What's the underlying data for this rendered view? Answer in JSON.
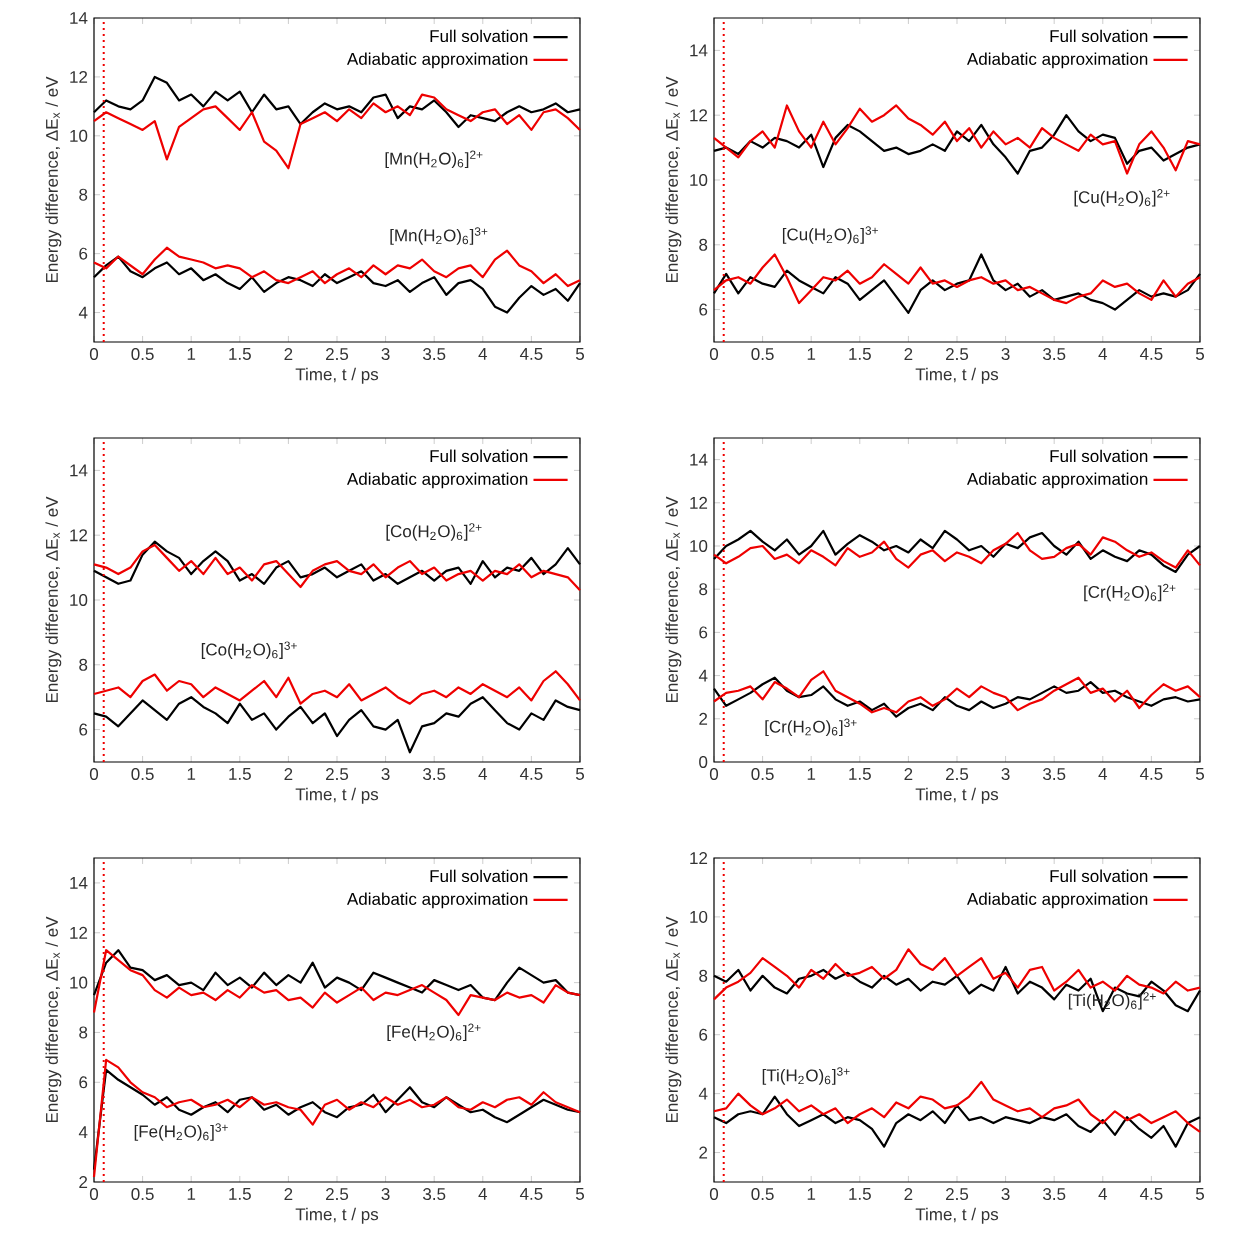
{
  "chart_data": [
    {
      "type": "line",
      "xlabel": "Time, t / ps",
      "ylabel": "Energy difference, ΔE$_{x}$ / eV",
      "legend": "top right",
      "x": [
        0,
        0.125,
        0.25,
        0.375,
        0.5,
        0.625,
        0.75,
        0.875,
        1,
        1.125,
        1.25,
        1.375,
        1.5,
        1.625,
        1.75,
        1.875,
        2,
        2.125,
        2.25,
        2.375,
        2.5,
        2.625,
        2.75,
        2.875,
        3,
        3.125,
        3.25,
        3.375,
        3.5,
        3.625,
        3.75,
        3.875,
        4,
        4.125,
        4.25,
        4.375,
        4.5,
        4.625,
        4.75,
        4.875,
        5
      ],
      "xlim": [
        0,
        5
      ],
      "xticks": [
        0,
        0.5,
        1,
        1.5,
        2,
        2.5,
        3,
        3.5,
        4,
        4.5,
        5
      ],
      "ylim": [
        3,
        14
      ],
      "yticks": [
        4,
        6,
        8,
        10,
        12,
        14
      ],
      "ref_lines": [
        {
          "axis": "x",
          "value": 0.1,
          "color": "#ee0000",
          "line_style": "dotted"
        }
      ],
      "annotations": [
        "[Mn(H$_{2}$O)$_{6}$]$^{2+}$",
        "[Mn(H$_{2}$O)$_{6}$]$^{3+}$"
      ],
      "series": [
        {
          "name": "Full solvation",
          "color": "#000000",
          "values": [
            10.8,
            11.2,
            11.0,
            10.9,
            11.2,
            12.0,
            11.8,
            11.2,
            11.4,
            11.0,
            11.5,
            11.2,
            11.5,
            10.8,
            11.4,
            10.9,
            11.0,
            10.4,
            10.8,
            11.1,
            10.9,
            11.0,
            10.8,
            11.3,
            11.4,
            10.6,
            11.0,
            10.9,
            11.2,
            10.8,
            10.3,
            10.7,
            10.6,
            10.5,
            10.8,
            11.0,
            10.8,
            10.9,
            11.1,
            10.8,
            10.9
          ]
        },
        {
          "name": "Adiabatic approximation",
          "color": "#ee0000",
          "values": [
            10.5,
            10.8,
            10.6,
            10.4,
            10.2,
            10.5,
            9.2,
            10.3,
            10.6,
            10.9,
            11.0,
            10.6,
            10.2,
            10.8,
            9.8,
            9.5,
            8.9,
            10.4,
            10.6,
            10.8,
            10.5,
            10.9,
            10.6,
            11.1,
            10.8,
            11.0,
            10.7,
            11.4,
            11.3,
            10.9,
            10.7,
            10.5,
            10.8,
            10.9,
            10.4,
            10.7,
            10.2,
            10.8,
            10.9,
            10.6,
            10.2
          ]
        },
        {
          "color": "#000000",
          "values": [
            5.2,
            5.6,
            5.9,
            5.4,
            5.2,
            5.5,
            5.7,
            5.3,
            5.5,
            5.1,
            5.3,
            5.0,
            4.8,
            5.2,
            4.7,
            5.0,
            5.2,
            5.1,
            4.9,
            5.3,
            5.0,
            5.2,
            5.4,
            5.0,
            4.9,
            5.1,
            4.7,
            5.0,
            5.2,
            4.6,
            5.0,
            5.1,
            4.8,
            4.2,
            4.0,
            4.5,
            4.9,
            4.6,
            4.8,
            4.4,
            5.0
          ]
        },
        {
          "color": "#ee0000",
          "values": [
            5.7,
            5.5,
            5.9,
            5.6,
            5.3,
            5.8,
            6.2,
            5.9,
            5.8,
            5.7,
            5.5,
            5.6,
            5.5,
            5.2,
            5.4,
            5.1,
            5.0,
            5.2,
            5.4,
            5.0,
            5.3,
            5.5,
            5.2,
            5.6,
            5.3,
            5.6,
            5.5,
            5.8,
            5.4,
            5.2,
            5.5,
            5.6,
            5.2,
            5.8,
            6.1,
            5.6,
            5.4,
            5.0,
            5.3,
            4.9,
            5.1
          ]
        }
      ]
    },
    {
      "type": "line",
      "xlabel": "Time, t / ps",
      "ylabel": "Energy difference, ΔE$_{x}$ / eV",
      "legend": "top right",
      "x": [
        0,
        0.125,
        0.25,
        0.375,
        0.5,
        0.625,
        0.75,
        0.875,
        1,
        1.125,
        1.25,
        1.375,
        1.5,
        1.625,
        1.75,
        1.875,
        2,
        2.125,
        2.25,
        2.375,
        2.5,
        2.625,
        2.75,
        2.875,
        3,
        3.125,
        3.25,
        3.375,
        3.5,
        3.625,
        3.75,
        3.875,
        4,
        4.125,
        4.25,
        4.375,
        4.5,
        4.625,
        4.75,
        4.875,
        5
      ],
      "xlim": [
        0,
        5
      ],
      "xticks": [
        0,
        0.5,
        1,
        1.5,
        2,
        2.5,
        3,
        3.5,
        4,
        4.5,
        5
      ],
      "ylim": [
        5,
        15
      ],
      "yticks": [
        6,
        8,
        10,
        12,
        14
      ],
      "ref_lines": [
        {
          "axis": "x",
          "value": 0.1,
          "color": "#ee0000",
          "line_style": "dotted"
        }
      ],
      "annotations": [
        "[Cu(H$_{2}$O)$_{6}$]$^{2+}$",
        "[Cu(H$_{2}$O)$_{6}$]$^{3+}$"
      ],
      "series": [
        {
          "name": "Full solvation",
          "color": "#000000",
          "values": [
            10.9,
            11.0,
            10.8,
            11.2,
            11.0,
            11.3,
            11.2,
            11.0,
            11.4,
            10.4,
            11.3,
            11.7,
            11.5,
            11.2,
            10.9,
            11.0,
            10.8,
            10.9,
            11.1,
            10.9,
            11.5,
            11.2,
            11.7,
            11.1,
            10.7,
            10.2,
            10.9,
            11.0,
            11.4,
            12.0,
            11.5,
            11.2,
            11.4,
            11.3,
            10.5,
            10.9,
            11.0,
            10.6,
            10.8,
            11.0,
            11.1
          ]
        },
        {
          "name": "Adiabatic approximation",
          "color": "#ee0000",
          "values": [
            11.3,
            11.0,
            10.7,
            11.2,
            11.5,
            11.0,
            12.3,
            11.5,
            11.0,
            11.8,
            11.1,
            11.6,
            12.2,
            11.8,
            12.0,
            12.3,
            11.9,
            11.7,
            11.4,
            11.8,
            11.2,
            11.6,
            11.0,
            11.5,
            11.1,
            11.3,
            11.0,
            11.6,
            11.3,
            11.1,
            10.9,
            11.4,
            11.1,
            11.2,
            10.2,
            11.1,
            11.5,
            11.0,
            10.3,
            11.2,
            11.1
          ]
        },
        {
          "color": "#000000",
          "values": [
            6.5,
            7.1,
            6.5,
            7.0,
            6.8,
            6.7,
            7.2,
            6.9,
            6.7,
            6.5,
            7.0,
            6.8,
            6.3,
            6.6,
            6.9,
            6.4,
            5.9,
            6.6,
            6.9,
            6.6,
            6.8,
            6.9,
            7.7,
            6.9,
            6.6,
            6.8,
            6.4,
            6.6,
            6.3,
            6.4,
            6.5,
            6.3,
            6.2,
            6.0,
            6.3,
            6.6,
            6.4,
            6.5,
            6.4,
            6.6,
            7.1
          ]
        },
        {
          "color": "#ee0000",
          "values": [
            6.6,
            6.9,
            7.0,
            6.8,
            7.3,
            7.7,
            7.0,
            6.2,
            6.6,
            7.0,
            6.9,
            7.2,
            6.8,
            7.0,
            7.4,
            7.1,
            6.8,
            7.3,
            6.8,
            6.9,
            6.7,
            6.9,
            7.0,
            6.8,
            6.9,
            6.6,
            6.7,
            6.5,
            6.3,
            6.2,
            6.4,
            6.5,
            6.9,
            6.7,
            6.8,
            6.5,
            6.3,
            6.9,
            6.4,
            6.8,
            7.0
          ]
        }
      ]
    },
    {
      "type": "line",
      "xlabel": "Time, t / ps",
      "ylabel": "Energy difference, ΔE$_{x}$ / eV",
      "legend": "top right",
      "x": [
        0,
        0.125,
        0.25,
        0.375,
        0.5,
        0.625,
        0.75,
        0.875,
        1,
        1.125,
        1.25,
        1.375,
        1.5,
        1.625,
        1.75,
        1.875,
        2,
        2.125,
        2.25,
        2.375,
        2.5,
        2.625,
        2.75,
        2.875,
        3,
        3.125,
        3.25,
        3.375,
        3.5,
        3.625,
        3.75,
        3.875,
        4,
        4.125,
        4.25,
        4.375,
        4.5,
        4.625,
        4.75,
        4.875,
        5
      ],
      "xlim": [
        0,
        5
      ],
      "xticks": [
        0,
        0.5,
        1,
        1.5,
        2,
        2.5,
        3,
        3.5,
        4,
        4.5,
        5
      ],
      "ylim": [
        5,
        15
      ],
      "yticks": [
        6,
        8,
        10,
        12,
        14
      ],
      "ref_lines": [
        {
          "axis": "x",
          "value": 0.1,
          "color": "#ee0000",
          "line_style": "dotted"
        }
      ],
      "annotations": [
        "[Co(H$_{2}$O)$_{6}$]$^{2+}$",
        "[Co(H$_{2}$O)$_{6}$]$^{3+}$"
      ],
      "series": [
        {
          "name": "Full solvation",
          "color": "#000000",
          "values": [
            10.9,
            10.7,
            10.5,
            10.6,
            11.4,
            11.8,
            11.5,
            11.3,
            10.8,
            11.2,
            11.5,
            11.2,
            10.6,
            10.8,
            10.5,
            11.0,
            11.2,
            10.7,
            10.8,
            11.0,
            10.7,
            10.9,
            11.1,
            10.6,
            10.8,
            10.5,
            10.7,
            10.9,
            10.6,
            10.9,
            11.0,
            10.5,
            11.2,
            10.7,
            11.0,
            10.9,
            11.3,
            10.8,
            11.1,
            11.6,
            11.1
          ]
        },
        {
          "name": "Adiabatic approximation",
          "color": "#ee0000",
          "values": [
            11.1,
            11.0,
            10.8,
            11.0,
            11.5,
            11.7,
            11.3,
            10.9,
            11.2,
            10.8,
            11.3,
            10.8,
            11.0,
            10.6,
            11.1,
            11.2,
            10.8,
            10.4,
            10.9,
            11.1,
            11.2,
            10.9,
            10.8,
            11.1,
            10.7,
            11.0,
            11.2,
            10.8,
            11.0,
            10.6,
            10.8,
            10.9,
            10.6,
            10.9,
            10.8,
            11.1,
            10.7,
            10.9,
            10.8,
            10.7,
            10.3
          ]
        },
        {
          "color": "#000000",
          "values": [
            6.5,
            6.4,
            6.1,
            6.5,
            6.9,
            6.6,
            6.3,
            6.8,
            7.0,
            6.7,
            6.5,
            6.2,
            6.8,
            6.3,
            6.5,
            6.0,
            6.4,
            6.7,
            6.2,
            6.5,
            5.8,
            6.3,
            6.6,
            6.1,
            6.0,
            6.3,
            5.3,
            6.1,
            6.2,
            6.5,
            6.4,
            6.8,
            7.0,
            6.6,
            6.2,
            6.0,
            6.5,
            6.3,
            6.9,
            6.7,
            6.6
          ]
        },
        {
          "color": "#ee0000",
          "values": [
            7.1,
            7.2,
            7.3,
            7.0,
            7.5,
            7.7,
            7.2,
            7.5,
            7.4,
            7.0,
            7.3,
            7.1,
            6.9,
            7.2,
            7.5,
            7.0,
            7.6,
            6.8,
            7.1,
            7.2,
            7.0,
            7.4,
            6.9,
            7.1,
            7.3,
            7.0,
            6.8,
            7.1,
            7.2,
            7.0,
            7.3,
            7.1,
            7.4,
            7.2,
            7.0,
            7.3,
            6.9,
            7.5,
            7.8,
            7.4,
            6.9
          ]
        }
      ]
    },
    {
      "type": "line",
      "xlabel": "Time, t / ps",
      "ylabel": "Energy difference, ΔE$_{x}$ / eV",
      "legend": "top right",
      "x": [
        0,
        0.125,
        0.25,
        0.375,
        0.5,
        0.625,
        0.75,
        0.875,
        1,
        1.125,
        1.25,
        1.375,
        1.5,
        1.625,
        1.75,
        1.875,
        2,
        2.125,
        2.25,
        2.375,
        2.5,
        2.625,
        2.75,
        2.875,
        3,
        3.125,
        3.25,
        3.375,
        3.5,
        3.625,
        3.75,
        3.875,
        4,
        4.125,
        4.25,
        4.375,
        4.5,
        4.625,
        4.75,
        4.875,
        5
      ],
      "xlim": [
        0,
        5
      ],
      "xticks": [
        0,
        0.5,
        1,
        1.5,
        2,
        2.5,
        3,
        3.5,
        4,
        4.5,
        5
      ],
      "ylim": [
        0,
        15
      ],
      "yticks": [
        0,
        2,
        4,
        6,
        8,
        10,
        12,
        14
      ],
      "ref_lines": [
        {
          "axis": "x",
          "value": 0.1,
          "color": "#ee0000",
          "line_style": "dotted"
        }
      ],
      "annotations": [
        "[Cr(H$_{2}$O)$_{6}$]$^{2+}$",
        "[Cr(H$_{2}$O)$_{6}$]$^{3+}$"
      ],
      "series": [
        {
          "name": "Full solvation",
          "color": "#000000",
          "values": [
            9.4,
            10.0,
            10.3,
            10.7,
            10.2,
            9.8,
            10.3,
            9.6,
            10.0,
            10.7,
            9.6,
            10.1,
            10.5,
            10.2,
            9.8,
            10.0,
            9.7,
            10.3,
            9.9,
            10.7,
            10.3,
            9.8,
            10.0,
            9.5,
            10.1,
            9.9,
            10.4,
            10.6,
            10.0,
            9.6,
            10.2,
            9.4,
            9.8,
            9.5,
            9.3,
            9.8,
            9.6,
            9.1,
            8.8,
            9.6,
            10.0
          ]
        },
        {
          "name": "Adiabatic approximation",
          "color": "#ee0000",
          "values": [
            9.6,
            9.2,
            9.5,
            9.9,
            10.0,
            9.4,
            9.6,
            9.2,
            9.8,
            9.5,
            9.1,
            9.9,
            9.5,
            9.7,
            10.2,
            9.4,
            9.0,
            9.6,
            9.8,
            9.3,
            9.7,
            9.5,
            9.2,
            9.8,
            10.1,
            10.6,
            9.8,
            9.4,
            9.5,
            9.9,
            10.1,
            9.6,
            10.4,
            10.2,
            9.8,
            9.5,
            9.7,
            9.3,
            9.0,
            9.8,
            9.1
          ]
        },
        {
          "color": "#000000",
          "values": [
            3.4,
            2.6,
            2.9,
            3.2,
            3.6,
            3.9,
            3.3,
            3.0,
            3.1,
            3.5,
            2.9,
            2.6,
            2.8,
            2.4,
            2.7,
            2.1,
            2.5,
            2.7,
            2.4,
            3.0,
            2.6,
            2.4,
            2.8,
            2.5,
            2.7,
            3.0,
            2.9,
            3.2,
            3.5,
            3.2,
            3.3,
            3.7,
            3.2,
            3.3,
            3.0,
            2.8,
            2.6,
            2.9,
            3.0,
            2.8,
            2.9
          ]
        },
        {
          "color": "#ee0000",
          "values": [
            2.8,
            3.2,
            3.3,
            3.5,
            2.9,
            3.7,
            3.4,
            3.0,
            3.8,
            4.2,
            3.3,
            3.0,
            2.7,
            2.3,
            2.5,
            2.3,
            2.8,
            3.0,
            2.6,
            2.9,
            3.4,
            3.0,
            3.5,
            3.2,
            3.0,
            2.4,
            2.7,
            2.9,
            3.3,
            3.6,
            3.9,
            3.2,
            3.4,
            2.8,
            3.3,
            2.5,
            3.1,
            3.6,
            3.3,
            3.5,
            3.0
          ]
        }
      ]
    },
    {
      "type": "line",
      "xlabel": "Time, t / ps",
      "ylabel": "Energy difference, ΔE$_{x}$ / eV",
      "legend": "top right",
      "x": [
        0,
        0.125,
        0.25,
        0.375,
        0.5,
        0.625,
        0.75,
        0.875,
        1,
        1.125,
        1.25,
        1.375,
        1.5,
        1.625,
        1.75,
        1.875,
        2,
        2.125,
        2.25,
        2.375,
        2.5,
        2.625,
        2.75,
        2.875,
        3,
        3.125,
        3.25,
        3.375,
        3.5,
        3.625,
        3.75,
        3.875,
        4,
        4.125,
        4.25,
        4.375,
        4.5,
        4.625,
        4.75,
        4.875,
        5
      ],
      "xlim": [
        0,
        5
      ],
      "xticks": [
        0,
        0.5,
        1,
        1.5,
        2,
        2.5,
        3,
        3.5,
        4,
        4.5,
        5
      ],
      "ylim": [
        2,
        15
      ],
      "yticks": [
        2,
        4,
        6,
        8,
        10,
        12,
        14
      ],
      "ref_lines": [
        {
          "axis": "x",
          "value": 0.1,
          "color": "#ee0000",
          "line_style": "dotted"
        }
      ],
      "annotations": [
        "[Fe(H$_{2}$O)$_{6}$]$^{2+}$",
        "[Fe(H$_{2}$O)$_{6}$]$^{3+}$"
      ],
      "series": [
        {
          "name": "Full solvation",
          "color": "#000000",
          "values": [
            9.5,
            10.8,
            11.3,
            10.6,
            10.5,
            10.1,
            10.3,
            9.9,
            10.0,
            9.7,
            10.4,
            9.9,
            10.2,
            9.8,
            10.4,
            9.9,
            10.3,
            10.0,
            10.8,
            9.8,
            10.2,
            10.0,
            9.7,
            10.4,
            10.2,
            10.0,
            9.8,
            9.6,
            10.1,
            9.9,
            9.7,
            9.9,
            9.4,
            9.3,
            10.0,
            10.6,
            10.3,
            10.0,
            10.1,
            9.6,
            9.5
          ]
        },
        {
          "name": "Adiabatic approximation",
          "color": "#ee0000",
          "values": [
            8.8,
            11.3,
            10.9,
            10.5,
            10.3,
            9.7,
            9.4,
            9.8,
            9.5,
            9.6,
            9.3,
            9.7,
            9.4,
            9.9,
            9.6,
            9.7,
            9.3,
            9.4,
            9.0,
            9.6,
            9.2,
            9.5,
            9.8,
            9.3,
            9.6,
            9.5,
            9.7,
            9.9,
            9.6,
            9.3,
            8.7,
            9.5,
            9.4,
            9.3,
            9.6,
            9.4,
            9.5,
            9.2,
            9.9,
            9.6,
            9.5
          ]
        },
        {
          "color": "#000000",
          "values": [
            2.5,
            6.5,
            6.1,
            5.8,
            5.5,
            5.1,
            5.4,
            4.9,
            4.7,
            5.0,
            5.2,
            4.8,
            5.3,
            5.4,
            4.9,
            5.1,
            4.7,
            5.0,
            5.2,
            4.8,
            4.6,
            5.0,
            5.1,
            5.5,
            4.8,
            5.3,
            5.8,
            5.2,
            5.0,
            5.4,
            5.1,
            4.8,
            4.9,
            4.6,
            4.4,
            4.7,
            5.0,
            5.3,
            5.1,
            4.9,
            4.8
          ]
        },
        {
          "color": "#ee0000",
          "values": [
            2.2,
            6.9,
            6.6,
            6.0,
            5.6,
            5.4,
            5.0,
            5.2,
            5.3,
            5.0,
            5.1,
            5.3,
            5.0,
            5.4,
            5.1,
            5.2,
            5.0,
            4.9,
            4.3,
            5.1,
            5.3,
            4.9,
            5.2,
            5.0,
            5.4,
            5.1,
            5.3,
            5.0,
            5.1,
            5.4,
            5.0,
            4.9,
            5.2,
            5.0,
            5.3,
            5.4,
            5.1,
            5.6,
            5.2,
            5.0,
            4.8
          ]
        }
      ]
    },
    {
      "type": "line",
      "xlabel": "Time, t / ps",
      "ylabel": "Energy difference, ΔE$_{x}$ / eV",
      "legend": "top right",
      "x": [
        0,
        0.125,
        0.25,
        0.375,
        0.5,
        0.625,
        0.75,
        0.875,
        1,
        1.125,
        1.25,
        1.375,
        1.5,
        1.625,
        1.75,
        1.875,
        2,
        2.125,
        2.25,
        2.375,
        2.5,
        2.625,
        2.75,
        2.875,
        3,
        3.125,
        3.25,
        3.375,
        3.5,
        3.625,
        3.75,
        3.875,
        4,
        4.125,
        4.25,
        4.375,
        4.5,
        4.625,
        4.75,
        4.875,
        5
      ],
      "xlim": [
        0,
        5
      ],
      "xticks": [
        0,
        0.5,
        1,
        1.5,
        2,
        2.5,
        3,
        3.5,
        4,
        4.5,
        5
      ],
      "ylim": [
        1,
        12
      ],
      "yticks": [
        2,
        4,
        6,
        8,
        10,
        12
      ],
      "ref_lines": [
        {
          "axis": "x",
          "value": 0.1,
          "color": "#ee0000",
          "line_style": "dotted"
        }
      ],
      "annotations": [
        "[Ti(H$_{2}$O)$_{6}$]$^{2+}$",
        "[Ti(H$_{2}$O)$_{6}$]$^{3+}$"
      ],
      "series": [
        {
          "name": "Full solvation",
          "color": "#000000",
          "values": [
            8.0,
            7.8,
            8.2,
            7.5,
            8.0,
            7.6,
            7.4,
            7.9,
            8.0,
            8.2,
            7.9,
            8.1,
            7.8,
            7.6,
            8.0,
            7.7,
            7.9,
            7.5,
            7.8,
            7.7,
            8.0,
            7.4,
            7.7,
            7.5,
            8.3,
            7.4,
            7.8,
            7.6,
            7.2,
            7.7,
            7.5,
            7.9,
            6.8,
            7.6,
            7.4,
            7.3,
            7.8,
            7.5,
            7.0,
            6.8,
            7.5
          ]
        },
        {
          "name": "Adiabatic approximation",
          "color": "#ee0000",
          "values": [
            7.2,
            7.6,
            7.8,
            8.1,
            8.6,
            8.3,
            8.0,
            7.6,
            8.2,
            7.9,
            8.4,
            8.0,
            8.1,
            8.3,
            7.9,
            8.2,
            8.9,
            8.4,
            8.2,
            8.6,
            8.0,
            8.3,
            8.6,
            7.9,
            8.1,
            7.6,
            8.2,
            8.3,
            7.5,
            7.8,
            8.2,
            7.6,
            7.8,
            7.5,
            8.0,
            7.7,
            7.6,
            7.4,
            7.8,
            7.5,
            7.6
          ]
        },
        {
          "color": "#000000",
          "values": [
            3.2,
            3.0,
            3.3,
            3.4,
            3.3,
            3.9,
            3.3,
            2.9,
            3.1,
            3.3,
            3.0,
            3.2,
            3.1,
            2.8,
            2.2,
            3.0,
            3.3,
            3.1,
            3.4,
            3.0,
            3.6,
            3.1,
            3.2,
            3.0,
            3.2,
            3.1,
            3.0,
            3.2,
            3.1,
            3.3,
            2.9,
            2.7,
            3.1,
            2.6,
            3.2,
            2.8,
            2.5,
            2.9,
            2.2,
            3.0,
            3.2
          ]
        },
        {
          "color": "#ee0000",
          "values": [
            3.4,
            3.5,
            4.0,
            3.6,
            3.3,
            3.5,
            3.8,
            3.4,
            3.6,
            3.3,
            3.5,
            3.0,
            3.3,
            3.5,
            3.2,
            3.7,
            3.5,
            3.9,
            3.8,
            3.5,
            3.6,
            3.9,
            4.4,
            3.8,
            3.6,
            3.4,
            3.5,
            3.2,
            3.5,
            3.6,
            3.8,
            3.3,
            3.0,
            3.4,
            3.1,
            3.3,
            3.0,
            3.2,
            3.4,
            3.0,
            2.7
          ]
        }
      ]
    }
  ]
}
